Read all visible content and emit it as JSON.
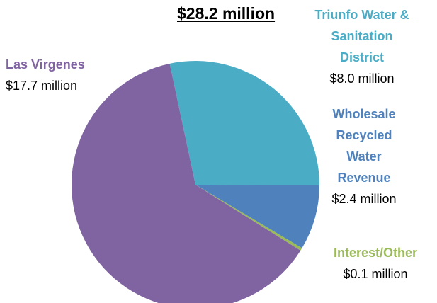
{
  "chart_data": {
    "type": "pie",
    "title": "$28.2 million",
    "categories": [
      "Triunfo Water & Sanitation District",
      "Wholesale Recycled Water Revenue",
      "Interest/Other",
      "Las Virgenes"
    ],
    "values": [
      8.0,
      2.4,
      0.1,
      17.7
    ],
    "value_labels": [
      "$8.0 million",
      "$2.4 million",
      "$0.1 million",
      "$17.7 million"
    ],
    "colors": [
      "#4bacc6",
      "#4f81bd",
      "#9bbb59",
      "#8064a2"
    ]
  }
}
